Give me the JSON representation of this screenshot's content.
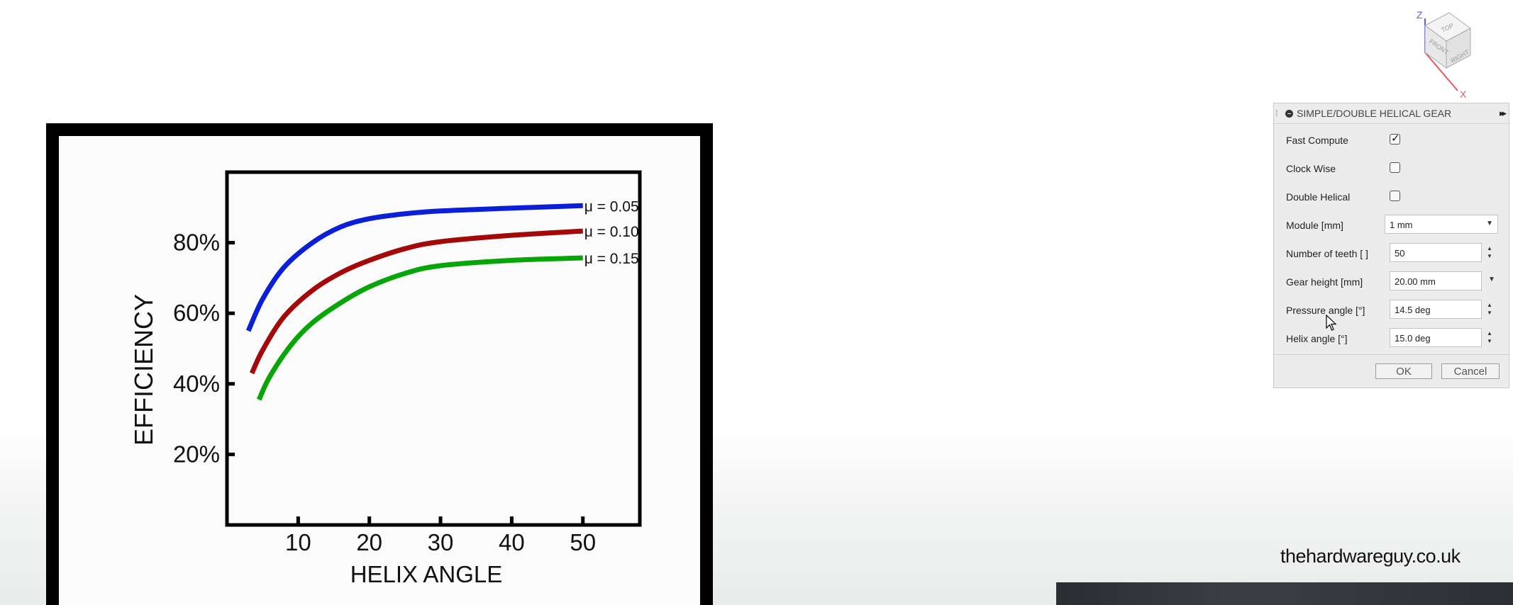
{
  "chart_data": {
    "type": "line",
    "xlabel": "HELIX ANGLE",
    "ylabel": "EFFICIENCY",
    "x_ticks": [
      10,
      20,
      30,
      40,
      50
    ],
    "y_ticks": [
      "20%",
      "40%",
      "60%",
      "80%"
    ],
    "y_tick_values": [
      20,
      40,
      60,
      80
    ],
    "xlim": [
      0,
      58
    ],
    "ylim": [
      0,
      100
    ],
    "grid": false,
    "series": [
      {
        "name": "μ = 0.05",
        "color": "#0b20d6",
        "x": [
          3,
          5,
          8,
          12,
          16,
          20,
          25,
          30,
          40,
          50
        ],
        "y": [
          55,
          64,
          73,
          80,
          84.5,
          86.8,
          88.2,
          89.0,
          89.8,
          90.5
        ]
      },
      {
        "name": "μ = 0.10",
        "color": "#a30909",
        "x": [
          3.5,
          5,
          8,
          12,
          16,
          20,
          25,
          30,
          40,
          50
        ],
        "y": [
          43,
          49.5,
          59,
          66.5,
          71.5,
          75,
          78.3,
          80.3,
          82.1,
          83.3
        ]
      },
      {
        "name": "μ = 0.15",
        "color": "#08a508",
        "x": [
          4.5,
          6,
          9,
          12,
          16,
          20,
          25,
          30,
          40,
          50
        ],
        "y": [
          35.5,
          42,
          51,
          57.3,
          63,
          67.5,
          71.3,
          73.5,
          75,
          75.7
        ]
      }
    ]
  },
  "dialog": {
    "title": "SIMPLE/DOUBLE HELICAL GEAR",
    "fast_compute_label": "Fast Compute",
    "fast_compute_checked": true,
    "clock_wise_label": "Clock Wise",
    "clock_wise_checked": false,
    "double_helical_label": "Double Helical",
    "double_helical_checked": false,
    "module_label": "Module [mm]",
    "module_value": "1 mm",
    "teeth_label": "Number of teeth [ ]",
    "teeth_value": "50",
    "gear_height_label": "Gear height [mm]",
    "gear_height_value": "20.00 mm",
    "pressure_angle_label": "Pressure angle [°]",
    "pressure_angle_value": "14.5 deg",
    "helix_angle_label": "Helix angle [°]",
    "helix_angle_value": "15.0 deg",
    "ok_label": "OK",
    "cancel_label": "Cancel"
  },
  "viewcube": {
    "top": "TOP",
    "front": "FRONT",
    "right": "RIGHT",
    "axis_z": "Z",
    "axis_x": "X"
  },
  "watermark": "thehardwareguy.co.uk"
}
